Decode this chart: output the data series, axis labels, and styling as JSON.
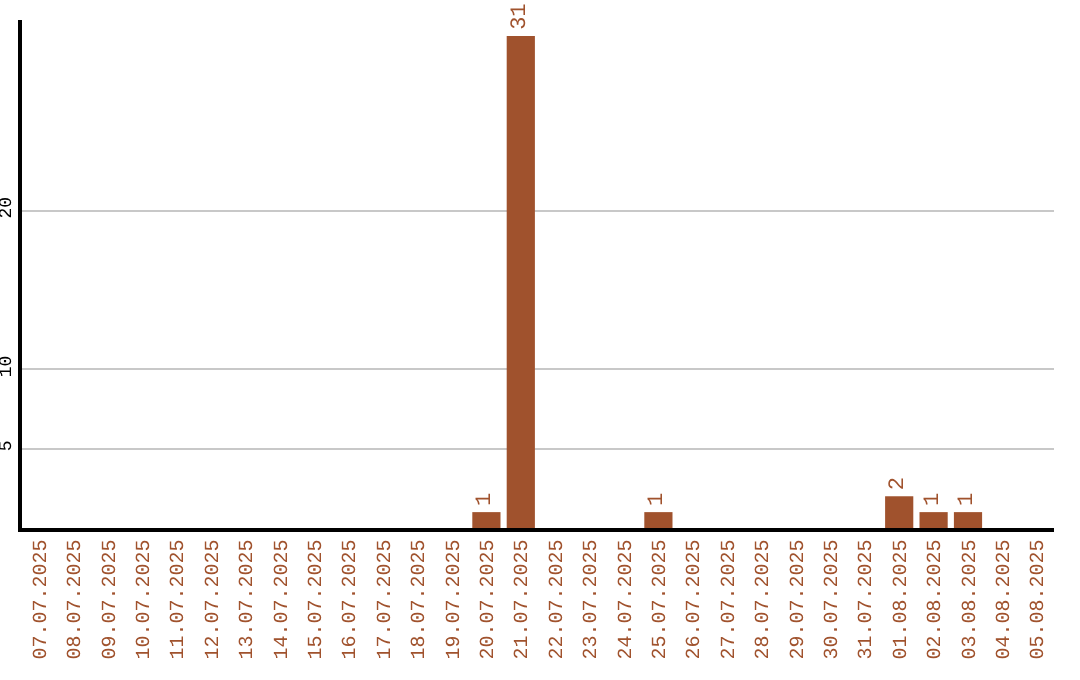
{
  "chart_data": {
    "type": "bar",
    "categories": [
      "07.07.2025",
      "08.07.2025",
      "09.07.2025",
      "10.07.2025",
      "11.07.2025",
      "12.07.2025",
      "13.07.2025",
      "14.07.2025",
      "15.07.2025",
      "16.07.2025",
      "17.07.2025",
      "18.07.2025",
      "19.07.2025",
      "20.07.2025",
      "21.07.2025",
      "22.07.2025",
      "23.07.2025",
      "24.07.2025",
      "25.07.2025",
      "26.07.2025",
      "27.07.2025",
      "28.07.2025",
      "29.07.2025",
      "30.07.2025",
      "31.07.2025",
      "01.08.2025",
      "02.08.2025",
      "03.08.2025",
      "04.08.2025",
      "05.08.2025"
    ],
    "values": [
      0,
      0,
      0,
      0,
      0,
      0,
      0,
      0,
      0,
      0,
      0,
      0,
      0,
      1,
      31,
      0,
      0,
      0,
      1,
      0,
      0,
      0,
      0,
      0,
      0,
      2,
      1,
      1,
      0,
      0
    ],
    "value_labels": [
      null,
      null,
      null,
      null,
      null,
      null,
      null,
      null,
      null,
      null,
      null,
      null,
      null,
      "1",
      "31",
      null,
      null,
      null,
      "1",
      null,
      null,
      null,
      null,
      null,
      null,
      "2",
      "1",
      "1",
      null,
      null
    ],
    "color": "#a0522d",
    "ylim": [
      0,
      32
    ],
    "yticks": [
      5,
      10,
      20
    ],
    "grid": "y",
    "legend": false
  }
}
